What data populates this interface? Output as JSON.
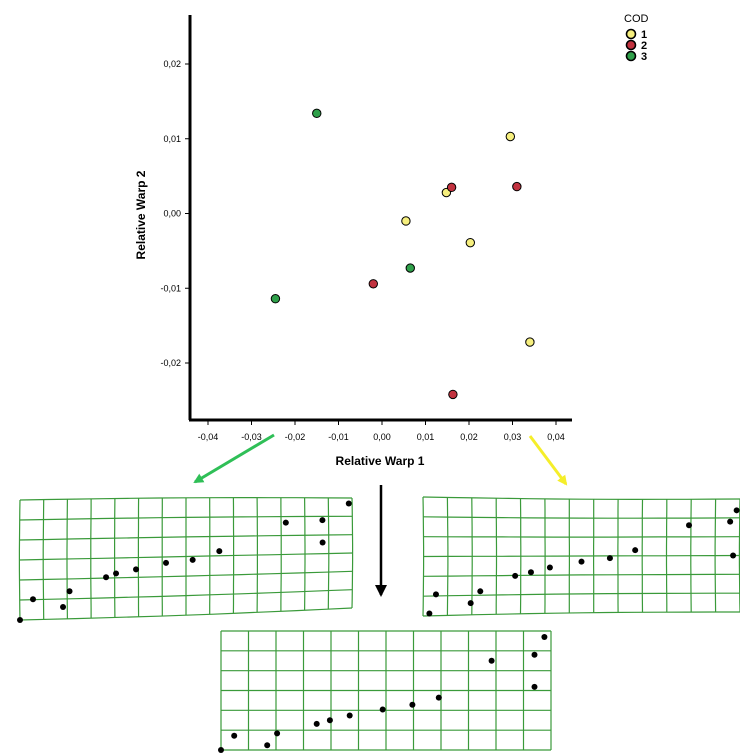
{
  "colors": {
    "group1": "#f6ef7e",
    "group2": "#c2323f",
    "group3": "#2fa04a",
    "grid": "#3a9a3a",
    "arrow_green": "#2fbf57",
    "arrow_yellow": "#f5ee2a",
    "arrow_black": "#000000"
  },
  "chart_data": {
    "type": "scatter",
    "xlabel": "Relative Warp 1",
    "ylabel": "Relative Warp 2",
    "xlim": [
      -0.045,
      0.045
    ],
    "ylim": [
      -0.028,
      0.027
    ],
    "x_ticks": [
      -0.04,
      -0.03,
      -0.02,
      -0.01,
      0.0,
      0.01,
      0.02,
      0.03,
      0.04
    ],
    "x_tick_labels": [
      "-0,04",
      "-0,03",
      "-0,02",
      "-0,01",
      "0,00",
      "0,01",
      "0,02",
      "0,03",
      "0,04"
    ],
    "y_ticks": [
      0.02,
      0.01,
      0.0,
      -0.01,
      -0.02
    ],
    "y_tick_labels": [
      "0,02",
      "0,01",
      "0,00",
      "-0,01",
      "-0,02"
    ],
    "legend": {
      "title": "COD",
      "position": "top-right",
      "entries": [
        {
          "label": "1",
          "color": "#f6ef7e"
        },
        {
          "label": "2",
          "color": "#c2323f"
        },
        {
          "label": "3",
          "color": "#2fa04a"
        }
      ]
    },
    "series": [
      {
        "name": "1",
        "color": "#f6ef7e",
        "points": [
          [
            0.0295,
            0.0103
          ],
          [
            0.0148,
            0.0028
          ],
          [
            0.0055,
            -0.001
          ],
          [
            0.0203,
            -0.0039
          ],
          [
            0.034,
            -0.0172
          ]
        ]
      },
      {
        "name": "2",
        "color": "#c2323f",
        "points": [
          [
            0.016,
            0.0035
          ],
          [
            0.031,
            0.0036
          ],
          [
            -0.002,
            -0.0094
          ],
          [
            0.0163,
            -0.0242
          ]
        ]
      },
      {
        "name": "3",
        "color": "#2fa04a",
        "points": [
          [
            -0.015,
            0.0134
          ],
          [
            0.0065,
            -0.0073
          ],
          [
            -0.0245,
            -0.0114
          ]
        ]
      }
    ]
  },
  "deformation_grids": {
    "landmark_count": 13,
    "panels": [
      {
        "name": "negative-extreme-grid",
        "associated_with": "Relative Warp 1 negative"
      },
      {
        "name": "positive-extreme-grid",
        "associated_with": "Relative Warp 1 positive"
      },
      {
        "name": "consensus-grid",
        "associated_with": "mean shape"
      }
    ]
  }
}
